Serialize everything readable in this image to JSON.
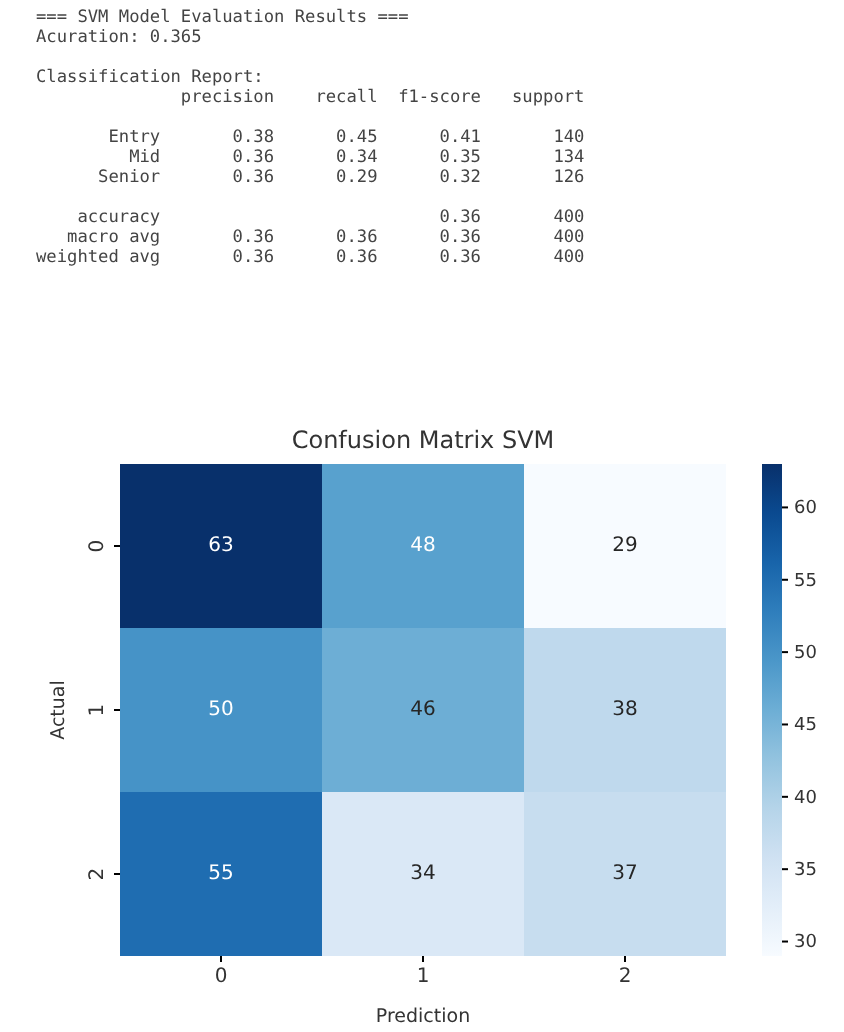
{
  "chart_data": [
    {
      "type": "other",
      "annotations": [
        "=== SVM Model Evaluation Results ===\nAcuration: 0.365",
        "Classification Report:\n              precision    recall  f1-score   support",
        "       Entry       0.38      0.45      0.41       140\n         Mid       0.36      0.34      0.35       134\n      Senior       0.36      0.29      0.32       126",
        "    accuracy                           0.36       400\n   macro avg       0.36      0.36      0.36       400\nweighted avg       0.36      0.36      0.36       400"
      ]
    },
    {
      "type": "heatmap",
      "title": "Confusion Matrix SVM",
      "xlabel": "Prediction",
      "ylabel": "Actual",
      "categories": [
        "0",
        "1",
        "2"
      ],
      "y_categories": [
        "0",
        "1",
        "2"
      ],
      "cells": [
        [
          63,
          48,
          29
        ],
        [
          50,
          46,
          38
        ],
        [
          55,
          34,
          37
        ]
      ],
      "data_labels": true,
      "clim": [
        29,
        63
      ],
      "cticks": [
        30,
        35,
        40,
        45,
        50,
        55,
        60
      ]
    }
  ]
}
